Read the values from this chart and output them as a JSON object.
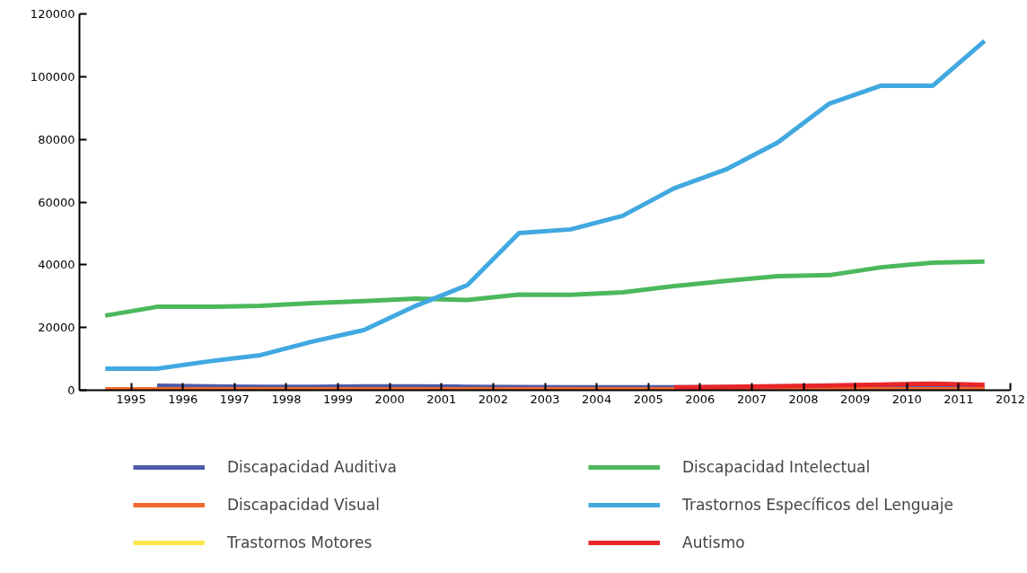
{
  "chart_data": {
    "type": "line",
    "x": [
      1994.5,
      1995.5,
      1996.5,
      1997.5,
      1998.5,
      1999.5,
      2000.5,
      2001.5,
      2002.5,
      2003.5,
      2004.5,
      2005.5,
      2006.5,
      2007.5,
      2008.5,
      2009.5,
      2010.5,
      2011.5
    ],
    "xlim": [
      1994,
      2012
    ],
    "xticks": [
      1995,
      1996,
      1997,
      1998,
      1999,
      2000,
      2001,
      2002,
      2003,
      2004,
      2005,
      2006,
      2007,
      2008,
      2009,
      2010,
      2011,
      2012
    ],
    "ylim": [
      0,
      120000
    ],
    "yticks": [
      0,
      20000,
      40000,
      60000,
      80000,
      100000,
      120000
    ],
    "grid": false,
    "legend": "bottom",
    "marker": "none",
    "line_style": "solid",
    "series": [
      {
        "name": "Discapacidad Auditiva",
        "color": "#4e5aa8",
        "values": [
          null,
          1400,
          1200,
          1100,
          1100,
          1200,
          1200,
          1100,
          1000,
          900,
          900,
          900,
          900,
          900,
          900,
          900,
          900,
          900
        ]
      },
      {
        "name": "Discapacidad Intelectual",
        "color": "#4cb85c",
        "values": [
          23800,
          26600,
          26600,
          26900,
          27800,
          28400,
          29200,
          28800,
          30500,
          30400,
          31200,
          33200,
          34900,
          36400,
          36700,
          39200,
          40700,
          41000
        ]
      },
      {
        "name": "Discapacidad Visual",
        "color": "#f26a2e",
        "values": [
          300,
          300,
          300,
          300,
          300,
          300,
          300,
          300,
          300,
          300,
          300,
          300,
          300,
          300,
          300,
          300,
          300,
          300
        ]
      },
      {
        "name": "Trastornos Específicos del Lenguaje",
        "color": "#41a8e0",
        "values": [
          6900,
          6900,
          9200,
          11200,
          15500,
          19200,
          26900,
          33500,
          50100,
          51300,
          55600,
          64400,
          70400,
          79000,
          91400,
          97100,
          97100,
          111400
        ]
      },
      {
        "name": "Trastornos Motores",
        "color": "#fde74c",
        "values": [
          null,
          null,
          null,
          null,
          null,
          null,
          null,
          null,
          null,
          null,
          null,
          null,
          null,
          null,
          null,
          null,
          null,
          null
        ]
      },
      {
        "name": "Autismo",
        "color": "#e8262a",
        "values": [
          null,
          null,
          null,
          null,
          null,
          null,
          null,
          null,
          null,
          null,
          null,
          900,
          1100,
          1300,
          1500,
          1800,
          2100,
          1700
        ]
      }
    ]
  }
}
